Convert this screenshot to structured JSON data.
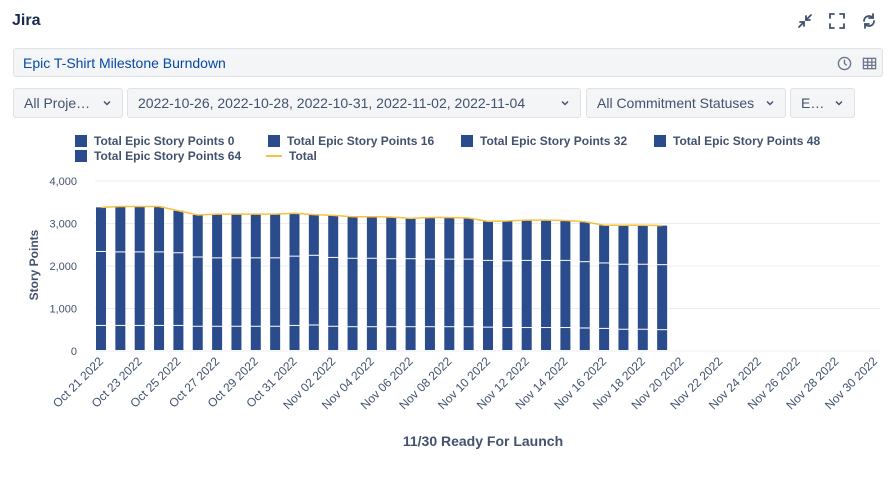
{
  "app": {
    "title": "Jira"
  },
  "report": {
    "title": "Epic T-Shirt Milestone Burndown"
  },
  "icons": {
    "collapse": "minimize-arrows-icon",
    "fullscreen": "fullscreen-icon",
    "refresh": "refresh-icon",
    "history": "clock-icon",
    "table": "table-icon",
    "dropdown": "chevron-down-icon"
  },
  "filters": [
    {
      "label": "All Projects"
    },
    {
      "label": "2022-10-26, 2022-10-28, 2022-10-31, 2022-11-02, 2022-11-04"
    },
    {
      "label": "All Commitment Statuses"
    },
    {
      "label": "Epic"
    }
  ],
  "colors": {
    "bar": "#2b4c8c",
    "bar_divider": "#ffffff",
    "total_line": "#f5c242",
    "grid": "#ebecf0",
    "axis_text": "#42526e"
  },
  "legend": [
    {
      "label": "Total Epic Story Points 0",
      "type": "bar"
    },
    {
      "label": "Total Epic Story Points 16",
      "type": "bar"
    },
    {
      "label": "Total Epic Story Points 32",
      "type": "bar"
    },
    {
      "label": "Total Epic Story Points 48",
      "type": "bar"
    },
    {
      "label": "Total Epic Story Points 64",
      "type": "bar"
    },
    {
      "label": "Total",
      "type": "line"
    }
  ],
  "chart_data": {
    "type": "bar",
    "stacked": true,
    "ylabel": "Story Points",
    "xlabel": "11/30 Ready For Launch",
    "ylim": [
      0,
      4000
    ],
    "yticks": [
      0,
      1000,
      2000,
      3000,
      4000
    ],
    "ytick_labels": [
      "0",
      "1,000",
      "2,000",
      "3,000",
      "4,000"
    ],
    "grid": true,
    "legend_position": "top",
    "x_tick_labels": [
      "Oct 21 2022",
      "Oct 23 2022",
      "Oct 25 2022",
      "Oct 27 2022",
      "Oct 29 2022",
      "Oct 31 2022",
      "Nov 02 2022",
      "Nov 04 2022",
      "Nov 06 2022",
      "Nov 08 2022",
      "Nov 10 2022",
      "Nov 12 2022",
      "Nov 14 2022",
      "Nov 16 2022",
      "Nov 18 2022",
      "Nov 20 2022",
      "Nov 22 2022",
      "Nov 24 2022",
      "Nov 26 2022",
      "Nov 28 2022",
      "Nov 30 2022"
    ],
    "categories": [
      "Oct 21 2022",
      "Oct 22 2022",
      "Oct 23 2022",
      "Oct 24 2022",
      "Oct 25 2022",
      "Oct 26 2022",
      "Oct 27 2022",
      "Oct 28 2022",
      "Oct 29 2022",
      "Oct 30 2022",
      "Oct 31 2022",
      "Nov 01 2022",
      "Nov 02 2022",
      "Nov 03 2022",
      "Nov 04 2022",
      "Nov 05 2022",
      "Nov 06 2022",
      "Nov 07 2022",
      "Nov 08 2022",
      "Nov 09 2022",
      "Nov 10 2022",
      "Nov 11 2022",
      "Nov 12 2022",
      "Nov 13 2022",
      "Nov 14 2022",
      "Nov 15 2022",
      "Nov 16 2022",
      "Nov 17 2022",
      "Nov 18 2022",
      "Nov 19 2022",
      "Nov 20 2022",
      "Nov 21 2022",
      "Nov 22 2022",
      "Nov 23 2022",
      "Nov 24 2022",
      "Nov 25 2022",
      "Nov 26 2022",
      "Nov 27 2022",
      "Nov 28 2022",
      "Nov 29 2022",
      "Nov 30 2022"
    ],
    "series": [
      {
        "name": "Total Epic Story Points 0",
        "values": [
          0,
          0,
          0,
          0,
          0,
          0,
          0,
          0,
          0,
          0,
          0,
          0,
          0,
          0,
          0,
          0,
          0,
          0,
          0,
          0,
          0,
          0,
          0,
          0,
          0,
          0,
          0,
          0,
          0,
          0,
          0,
          0,
          0,
          0,
          0,
          0,
          0,
          0,
          0,
          0,
          0
        ]
      },
      {
        "name": "Total Epic Story Points 16",
        "values": [
          590,
          590,
          590,
          590,
          590,
          570,
          570,
          570,
          570,
          570,
          590,
          600,
          570,
          560,
          560,
          560,
          560,
          560,
          560,
          560,
          550,
          540,
          540,
          540,
          540,
          530,
          520,
          500,
          500,
          490,
          null,
          null,
          null,
          null,
          null,
          null,
          null,
          null,
          null,
          null,
          null
        ]
      },
      {
        "name": "Total Epic Story Points 32",
        "values": [
          1740,
          1730,
          1730,
          1730,
          1710,
          1630,
          1610,
          1610,
          1610,
          1610,
          1630,
          1640,
          1620,
          1610,
          1610,
          1600,
          1600,
          1590,
          1590,
          1590,
          1570,
          1570,
          1580,
          1580,
          1580,
          1560,
          1540,
          1530,
          1530,
          1530,
          null,
          null,
          null,
          null,
          null,
          null,
          null,
          null,
          null,
          null,
          null
        ]
      },
      {
        "name": "Total Epic Story Points 48",
        "values": [
          0,
          0,
          0,
          0,
          0,
          0,
          0,
          0,
          0,
          0,
          0,
          0,
          0,
          0,
          0,
          0,
          0,
          0,
          0,
          0,
          0,
          0,
          0,
          0,
          0,
          0,
          0,
          0,
          0,
          0,
          0,
          0,
          0,
          0,
          0,
          0,
          0,
          0,
          0,
          0,
          0
        ]
      },
      {
        "name": "Total Epic Story Points 64",
        "values": [
          1050,
          1080,
          1080,
          1080,
          1000,
          1000,
          1040,
          1040,
          1040,
          1040,
          1020,
          970,
          1000,
          990,
          990,
          990,
          960,
          990,
          990,
          980,
          930,
          950,
          960,
          960,
          950,
          950,
          900,
          930,
          930,
          930,
          null,
          null,
          null,
          null,
          null,
          null,
          null,
          null,
          null,
          null,
          null
        ]
      },
      {
        "name": "Total",
        "type": "line",
        "values": [
          3380,
          3400,
          3400,
          3400,
          3300,
          3200,
          3220,
          3220,
          3220,
          3220,
          3240,
          3210,
          3190,
          3160,
          3160,
          3150,
          3120,
          3140,
          3140,
          3130,
          3050,
          3060,
          3080,
          3080,
          3070,
          3040,
          2960,
          2960,
          2960,
          2950,
          null,
          null,
          null,
          null,
          null,
          null,
          null,
          null,
          null,
          null,
          null
        ]
      }
    ]
  }
}
